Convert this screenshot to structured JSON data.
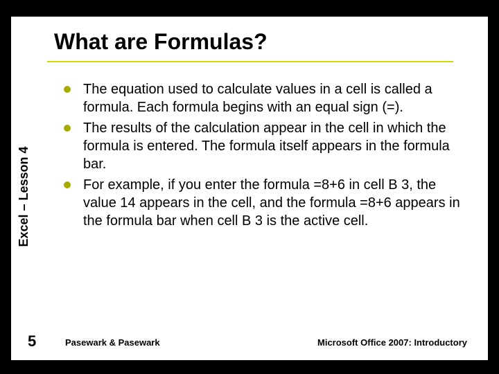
{
  "slide": {
    "background_outer": "#000000",
    "background_inner": "#ffffff",
    "title": "What are Formulas?",
    "title_fontsize": 32,
    "title_color": "#000000",
    "underline_color": "#d1d700",
    "sidebar_label": "Excel – Lesson 4",
    "sidebar_fontsize": 18,
    "bullets": [
      "The equation used to calculate values in a cell is called a formula. Each formula begins with an equal sign (=).",
      "The results of the calculation appear in the cell in which the formula is entered. The formula itself appears in the formula bar.",
      "For example, if you enter the formula =8+6 in cell B 3, the value 14 appears in the cell, and the formula =8+6 appears in the formula bar when cell B 3 is the active cell."
    ],
    "bullet_color": "#a7ab00",
    "bullet_text_fontsize": 20,
    "bullet_text_color": "#000000",
    "slide_number": "5",
    "footer_left": "Pasewark & Pasewark",
    "footer_right": "Microsoft Office 2007:  Introductory",
    "footer_fontsize": 13
  }
}
